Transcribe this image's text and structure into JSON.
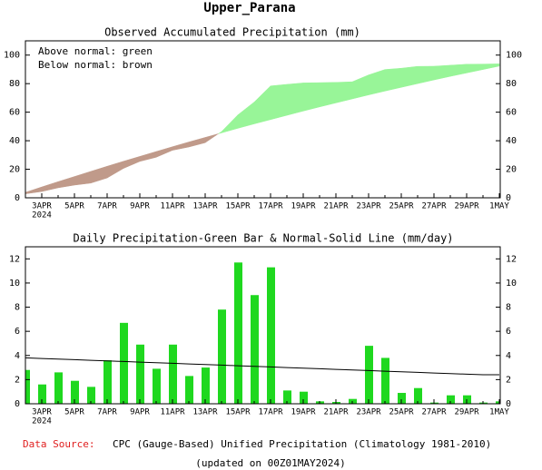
{
  "page_title": "Upper_Parana",
  "chart_data": [
    {
      "type": "area_difference",
      "title": "Observed Accumulated Precipitation (mm)",
      "annotations": [
        "Above normal: green",
        "Below normal: brown"
      ],
      "categories": [
        null,
        "3APR",
        null,
        "5APR",
        null,
        "7APR",
        null,
        "9APR",
        null,
        "11APR",
        null,
        "13APR",
        null,
        "15APR",
        null,
        "17APR",
        null,
        "19APR",
        null,
        "21APR",
        null,
        "23APR",
        null,
        "25APR",
        null,
        "27APR",
        null,
        "29APR",
        null,
        "1MAY"
      ],
      "year_label": "2024",
      "series": [
        {
          "values": [
            2.8,
            4.4,
            7.0,
            8.9,
            10.3,
            13.9,
            20.6,
            25.5,
            28.4,
            33.3,
            35.6,
            38.6,
            46.4,
            58.1,
            67.1,
            78.4,
            79.5,
            80.5,
            80.7,
            80.9,
            81.3,
            86.1,
            89.9,
            90.8,
            92.1,
            92.2,
            92.9,
            93.6,
            93.7,
            93.9
          ]
        },
        {
          "values": [
            3.8,
            7.6,
            11.3,
            14.9,
            18.5,
            22.1,
            25.6,
            29.0,
            32.4,
            35.8,
            39.1,
            42.3,
            45.5,
            48.7,
            51.8,
            54.8,
            57.8,
            60.8,
            63.7,
            66.5,
            69.3,
            72.1,
            74.8,
            77.4,
            80.0,
            82.6,
            85.1,
            87.5,
            89.9,
            92.3
          ]
        }
      ],
      "above_color": "#98f598",
      "below_color": "#c09a8a",
      "ylim": [
        0,
        110
      ],
      "yticks": [
        0,
        20,
        40,
        60,
        80,
        100
      ]
    },
    {
      "type": "bar_line",
      "title": "Daily Precipitation-Green Bar & Normal-Solid Line (mm/day)",
      "categories": [
        null,
        "3APR",
        null,
        "5APR",
        null,
        "7APR",
        null,
        "9APR",
        null,
        "11APR",
        null,
        "13APR",
        null,
        "15APR",
        null,
        "17APR",
        null,
        "19APR",
        null,
        "21APR",
        null,
        "23APR",
        null,
        "25APR",
        null,
        "27APR",
        null,
        "29APR",
        null,
        "1MAY"
      ],
      "year_label": "2024",
      "series": [
        {
          "type": "bar",
          "color": "#1fd81f",
          "values": [
            2.8,
            1.6,
            2.6,
            1.9,
            1.4,
            3.6,
            6.7,
            4.9,
            2.9,
            4.9,
            2.3,
            3.0,
            7.8,
            11.7,
            9.0,
            11.3,
            1.1,
            1.0,
            0.2,
            0.15,
            0.4,
            4.8,
            3.8,
            0.9,
            1.3,
            0.1,
            0.7,
            0.7,
            0.1,
            0.2
          ]
        },
        {
          "type": "line",
          "color": "#000000",
          "values": [
            3.8,
            3.75,
            3.7,
            3.65,
            3.6,
            3.55,
            3.5,
            3.45,
            3.4,
            3.35,
            3.3,
            3.25,
            3.2,
            3.15,
            3.1,
            3.05,
            3.0,
            2.95,
            2.9,
            2.85,
            2.8,
            2.75,
            2.7,
            2.65,
            2.6,
            2.55,
            2.5,
            2.45,
            2.4,
            2.4
          ]
        }
      ],
      "ylim": [
        0,
        13
      ],
      "yticks": [
        0,
        2,
        4,
        6,
        8,
        10,
        12
      ]
    }
  ],
  "footer": {
    "source_label": "Data Source:",
    "source_text": "CPC (Gauge-Based) Unified Precipitation (Climatology 1981-2010)",
    "updated": "(updated on 00Z01MAY2024)"
  }
}
